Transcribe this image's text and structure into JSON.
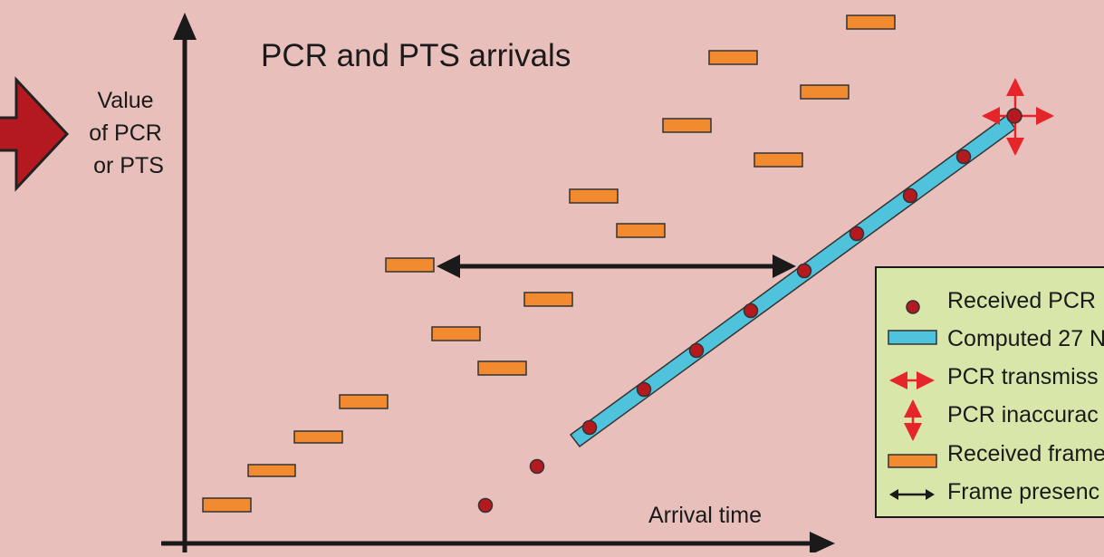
{
  "title": "PCR and PTS arrivals",
  "y_axis_label": [
    "Value",
    "of PCR",
    "or PTS"
  ],
  "x_axis_label": "Arrival time",
  "legend": {
    "items": [
      {
        "icon": "red-dot-icon",
        "label": "Received PCR"
      },
      {
        "icon": "blue-bar-icon",
        "label": "Computed 27 N"
      },
      {
        "icon": "red-horizontal-arrow-icon",
        "label": "PCR transmiss"
      },
      {
        "icon": "red-vertical-arrow-icon",
        "label": "PCR inaccurac"
      },
      {
        "icon": "orange-bar-icon",
        "label": "Received frame"
      },
      {
        "icon": "black-double-arrow-icon",
        "label": "Frame presenc"
      }
    ]
  },
  "colors": {
    "background": "#e8bfbb",
    "frame": "#f28a30",
    "pcr": "#b3191f",
    "clock": "#4fc3dc",
    "legend_bg": "#d9e6aa",
    "pointer_arrow": "#b3191f"
  }
}
